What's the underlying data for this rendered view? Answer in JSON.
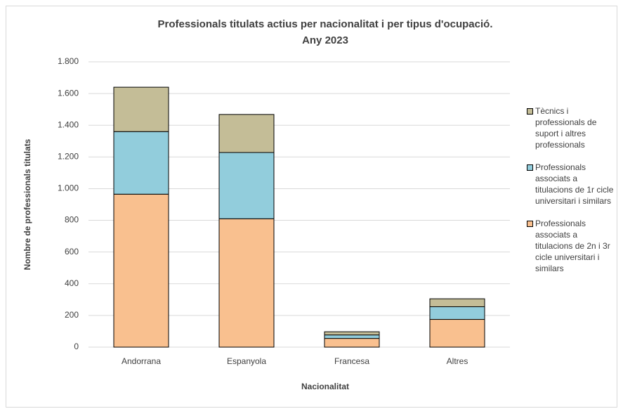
{
  "chart_data": {
    "type": "stacked-bar",
    "title": [
      "Professionals titulats actius per nacionalitat i per tipus d'ocupació.",
      "Any 2023"
    ],
    "x_label": "Nacionalitat",
    "y_label": "Nombre de professionals  titulats",
    "categories": [
      "Andorrana",
      "Espanyola",
      "Francesa",
      "Altres"
    ],
    "series": [
      {
        "name": "Professionals associats a titulacions de 2n i 3r cicle universitari i similars",
        "color": "#f9c08f",
        "values": [
          965,
          810,
          55,
          175
        ]
      },
      {
        "name": "Professionals associats a titulacions de 1r cicle universitari i similars",
        "color": "#92cddc",
        "values": [
          395,
          418,
          22,
          80
        ]
      },
      {
        "name": "Tècnics i professionals de suport i altres professionals",
        "color": "#c4bd97",
        "values": [
          280,
          240,
          20,
          50
        ]
      }
    ],
    "ylim": [
      0,
      1800
    ],
    "yticks": [
      0,
      200,
      400,
      600,
      800,
      {
        "value": 1000,
        "label": "1.000"
      },
      {
        "value": 1200,
        "label": "1.200"
      },
      {
        "value": 1400,
        "label": "1.400"
      },
      {
        "value": 1600,
        "label": "1.600"
      },
      {
        "value": 1800,
        "label": "1.800"
      }
    ],
    "grid": true,
    "legend": "right"
  }
}
